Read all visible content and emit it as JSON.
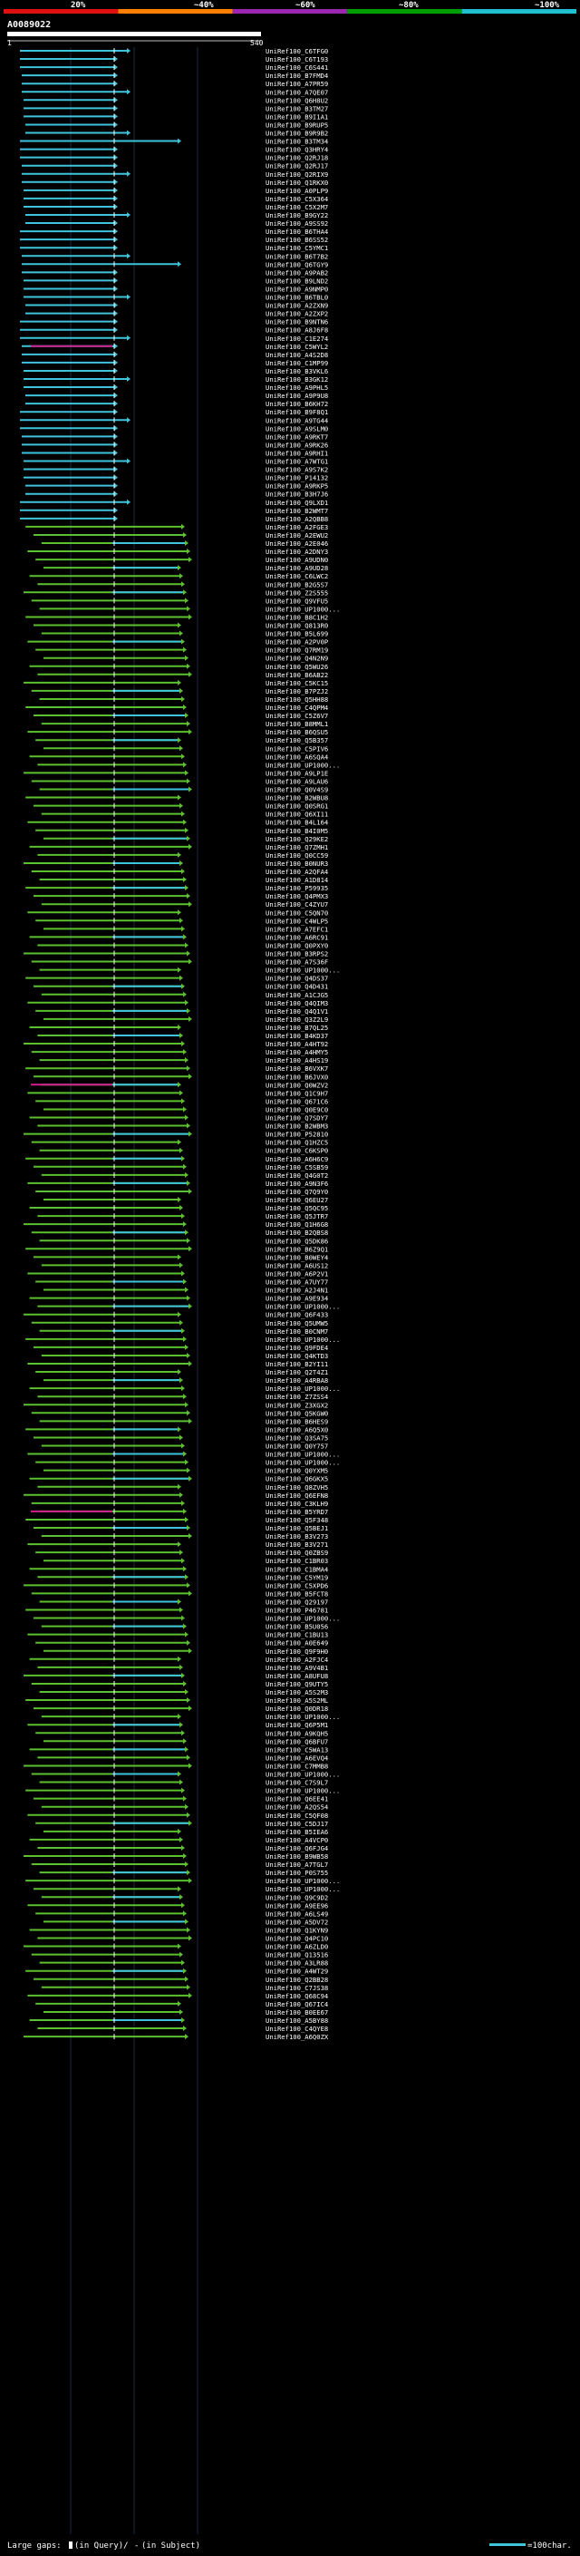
{
  "chart_data": {
    "type": "alignment-overview",
    "query_id": "A0089022",
    "ruler": {
      "start": "1",
      "end": "540"
    },
    "scale_labels": [
      "20%",
      "~40%",
      "~60%",
      "~80%",
      "~100%"
    ],
    "scale_colors": [
      "#e01010",
      "#ff7f00",
      "#9b27b0",
      "#00a000",
      "#20c0d0"
    ],
    "legend": {
      "large_gaps_label": "Large gaps:",
      "gap_in_query": "(in Query)/",
      "gap_in_subject": "(in Subject)",
      "scale_note": "=100char."
    },
    "identity_colors": {
      "cyan": "#40c4dc",
      "green": "#5cc030",
      "magenta": "#d02090",
      "dark": "#0a200a"
    },
    "query_length": 540,
    "hits": [
      "UniRef100_C6TFG0",
      "UniRef100_C6T193",
      "UniRef100_C6S441",
      "UniRef100_B7FMD4",
      "UniRef100_A7PR59",
      "UniRef100_A7QE07",
      "UniRef100_Q6H8U2",
      "UniRef100_B3TM27",
      "UniRef100_B9I1A1",
      "UniRef100_B9RUP5",
      "UniRef100_B9R9B2",
      "UniRef100_B3TM34",
      "UniRef100_Q3HRY4",
      "UniRef100_Q2RJ18",
      "UniRef100_Q2RJ17",
      "UniRef100_Q2RIX9",
      "UniRef100_Q1RKX0",
      "UniRef100_A0PLP9",
      "UniRef100_C5X364",
      "UniRef100_C5X2M7",
      "UniRef100_B9GY22",
      "UniRef100_A9SS92",
      "UniRef100_B6THA4",
      "UniRef100_B6SS52",
      "UniRef100_C5YMC1",
      "UniRef100_B6T7B2",
      "UniRef100_Q6TGY9",
      "UniRef100_A9PAB2",
      "UniRef100_B9LND2",
      "UniRef100_A9NMP0",
      "UniRef100_B6TBL0",
      "UniRef100_A2ZXN9",
      "UniRef100_A2ZXP2",
      "UniRef100_B9NTN6",
      "UniRef100_A8J6F8",
      "UniRef100_C1E274",
      "UniRef100_C5WYL2",
      "UniRef100_A4S2D8",
      "UniRef100_C1MP99",
      "UniRef100_B3VKL6",
      "UniRef100_B3GK12",
      "UniRef100_A9PHL5",
      "UniRef100_A9P9U8",
      "UniRef100_B6KH72",
      "UniRef100_B9F8Q1",
      "UniRef100_A9TG44",
      "UniRef100_A9SLM0",
      "UniRef100_A9RKT7",
      "UniRef100_A9RK26",
      "UniRef100_A9RHI1",
      "UniRef100_A7WTG1",
      "UniRef100_A9S7K2",
      "UniRef100_P14132",
      "UniRef100_A9RKP5",
      "UniRef100_B3H7J6",
      "UniRef100_Q9LXD1",
      "UniRef100_B2WMT7",
      "UniRef100_A2QBB8",
      "UniRef100_A2FGE3",
      "UniRef100_A2EWU2",
      "UniRef100_A2E046",
      "UniRef100_A2DNY3",
      "UniRef100_A9UDN0",
      "UniRef100_A9UD28",
      "UniRef100_C6LWC2",
      "UniRef100_B2G5S7",
      "UniRef100_Z2S555",
      "UniRef100_Q9VFU5",
      "UniRef100_UP1000...",
      "UniRef100_B8C1H2",
      "UniRef100_Q813R0",
      "UniRef100_B5L699",
      "UniRef100_A2PV0P",
      "UniRef100_Q7RM19",
      "UniRef100_Q4N2N9",
      "UniRef100_Q5WU26",
      "UniRef100_B6AB22",
      "UniRef100_C5KC15",
      "UniRef100_B7PZJ2",
      "UniRef100_Q5HH88",
      "UniRef100_C4QPM4",
      "UniRef100_C5Z6V7",
      "UniRef100_B8MML1",
      "UniRef100_B6QSU5",
      "UniRef100_Q5B357",
      "UniRef100_C5PIV6",
      "UniRef100_A6SQA4",
      "UniRef100_UP1000...",
      "UniRef100_A9LP1E",
      "UniRef100_A9LAU6",
      "UniRef100_Q0V4S9",
      "UniRef100_B2WBU8",
      "UniRef100_Q0SRG1",
      "UniRef100_Q6XI11",
      "UniRef100_B4L164",
      "UniRef100_B4I0M5",
      "UniRef100_Q29KE2",
      "UniRef100_Q7ZMH1",
      "UniRef100_Q0CC59",
      "UniRef100_B0NUR3",
      "UniRef100_A2QFA4",
      "UniRef100_A1D814",
      "UniRef100_P59935",
      "UniRef100_Q4PMX3",
      "UniRef100_C4ZYU7",
      "UniRef100_C5QN70",
      "UniRef100_C4WLP5",
      "UniRef100_A7EFC1",
      "UniRef100_A6RC91",
      "UniRef100_Q0PXY0",
      "UniRef100_B3RPS2",
      "UniRef100_A7S36F",
      "UniRef100_UP1000...",
      "UniRef100_Q4DS37",
      "UniRef100_Q4D431",
      "UniRef100_A1CJG5",
      "UniRef100_Q4QIM3",
      "UniRef100_Q4Q1V1",
      "UniRef100_Q3Z2L9",
      "UniRef100_B7QL25",
      "UniRef100_B4KD37",
      "UniRef100_A4HT92",
      "UniRef100_A4HMY5",
      "UniRef100_A4HS19",
      "UniRef100_B6VXK7",
      "UniRef100_B6JVX0",
      "UniRef100_Q0WZV2",
      "UniRef100_Q1C9H7",
      "UniRef100_Q671C6",
      "UniRef100_Q0E9C0",
      "UniRef100_Q7SDY7",
      "UniRef100_B2WBM3",
      "UniRef100_P52810",
      "UniRef100_Q1HZC5",
      "UniRef100_C6KSP0",
      "UniRef100_A6H6C9",
      "UniRef100_C5SB59",
      "UniRef100_Q4G0T2",
      "UniRef100_A9N3F6",
      "UniRef100_Q7Q9Y0",
      "UniRef100_Q6EU27",
      "UniRef100_Q5QC95",
      "UniRef100_Q5JTR7",
      "UniRef100_Q1H6G8",
      "UniRef100_B2QBS8",
      "UniRef100_Q5DK86",
      "UniRef100_B6Z9Q1",
      "UniRef100_B0WEY4",
      "UniRef100_A6US12",
      "UniRef100_A6P2V1",
      "UniRef100_A7UY77",
      "UniRef100_A2J4N1",
      "UniRef100_A9E934",
      "UniRef100_UP1000...",
      "UniRef100_Q6F433",
      "UniRef100_Q5UMW5",
      "UniRef100_B0CNM7",
      "UniRef100_UP1000...",
      "UniRef100_Q9FDE4",
      "UniRef100_Q4KTD3",
      "UniRef100_B2YI11",
      "UniRef100_Q2T4Z1",
      "UniRef100_A4RBA8",
      "UniRef100_UP1000...",
      "UniRef100_Z7ZSS4",
      "UniRef100_Z3XGX2",
      "UniRef100_Q5KGW0",
      "UniRef100_B6HES9",
      "UniRef100_A6Q5X0",
      "UniRef100_Q3SA75",
      "UniRef100_Q0Y757",
      "UniRef100_UP1000...",
      "UniRef100_UP1000...",
      "UniRef100_Q0YXM5",
      "UniRef100_Q6GKX5",
      "UniRef100_Q8ZVH5",
      "UniRef100_Q6EFN8",
      "UniRef100_C3KLH9",
      "UniRef100_B5YRD7",
      "UniRef100_Q5F348",
      "UniRef100_Q5BEJ1",
      "UniRef100_B3V273",
      "UniRef100_B3V271",
      "UniRef100_Q0ZBS9",
      "UniRef100_C1BR03",
      "UniRef100_C1BMA4",
      "UniRef100_C5YM19",
      "UniRef100_C5XPD6",
      "UniRef100_B5FCT8",
      "UniRef100_Q29197",
      "UniRef100_P46781",
      "UniRef100_UP1000...",
      "UniRef100_B5U056",
      "UniRef100_C1BU13",
      "UniRef100_A0E649",
      "UniRef100_Q9F9H0",
      "UniRef100_A2FJC4",
      "UniRef100_A9V4B1",
      "UniRef100_A8UFU8",
      "UniRef100_Q9UTY5",
      "UniRef100_A5S2M3",
      "UniRef100_A5S2ML",
      "UniRef100_Q0DR18",
      "UniRef100_UP1000...",
      "UniRef100_Q6P5M1",
      "UniRef100_A9KQH5",
      "UniRef100_Q6BFU7",
      "UniRef100_C5WA13",
      "UniRef100_A6EVQ4",
      "UniRef100_C7MMB8",
      "UniRef100_UP1000...",
      "UniRef100_C7S9L7",
      "UniRef100_UP1000...",
      "UniRef100_Q6EE41",
      "UniRef100_A2QS54",
      "UniRef100_C5QF08",
      "UniRef100_C5DJ17",
      "UniRef100_B5IEA6",
      "UniRef100_A4VCP0",
      "UniRef100_Q6FJG4",
      "UniRef100_B9WB58",
      "UniRef100_A7TGL7",
      "UniRef100_P0S755",
      "UniRef100_UP1000...",
      "UniRef100_UP1000...",
      "UniRef100_Q9C9D2",
      "UniRef100_A9EE96",
      "UniRef100_A6LS49",
      "UniRef100_A5DV72",
      "UniRef100_Q1KYN9",
      "UniRef100_Q4PC10",
      "UniRef100_A6ZLD0",
      "UniRef100_Q13516",
      "UniRef100_A3LR88",
      "UniRef100_A4WT29",
      "UniRef100_Q2BB28",
      "UniRef100_C7JS38",
      "UniRef100_Q68C94",
      "UniRef100_Q67IC4",
      "UniRef100_B0EE67",
      "UniRef100_A5BY88",
      "UniRef100_C4QYE8",
      "UniRef100_A6Q0ZX"
    ]
  }
}
